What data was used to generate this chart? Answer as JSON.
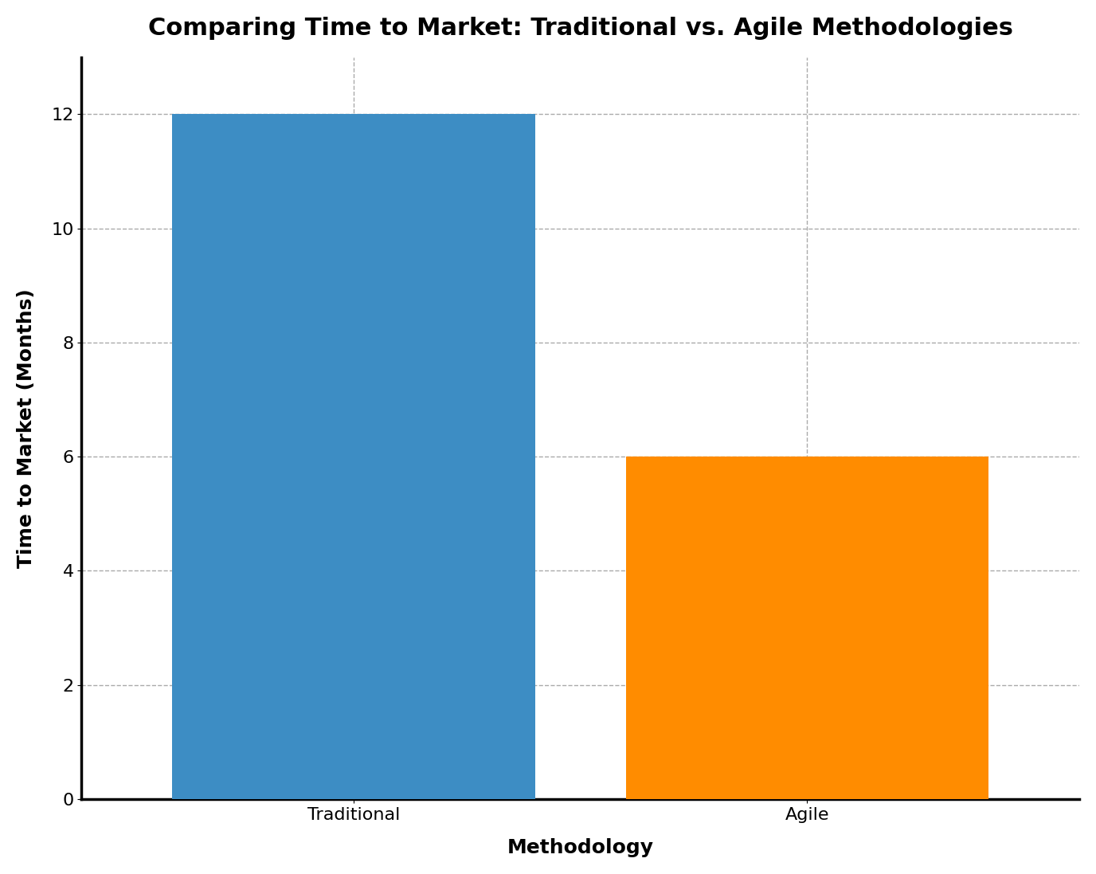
{
  "categories": [
    "Traditional",
    "Agile"
  ],
  "values": [
    12,
    6
  ],
  "bar_colors": [
    "#3d8dc4",
    "#ff8c00"
  ],
  "title": "Comparing Time to Market: Traditional vs. Agile Methodologies",
  "xlabel": "Methodology",
  "ylabel": "Time to Market (Months)",
  "ylim": [
    0,
    13
  ],
  "yticks": [
    0,
    2,
    4,
    6,
    8,
    10,
    12
  ],
  "title_fontsize": 22,
  "label_fontsize": 18,
  "tick_fontsize": 16,
  "bar_width": 0.8,
  "grid_color": "#aaaaaa",
  "grid_style": "--",
  "background_color": "#ffffff"
}
